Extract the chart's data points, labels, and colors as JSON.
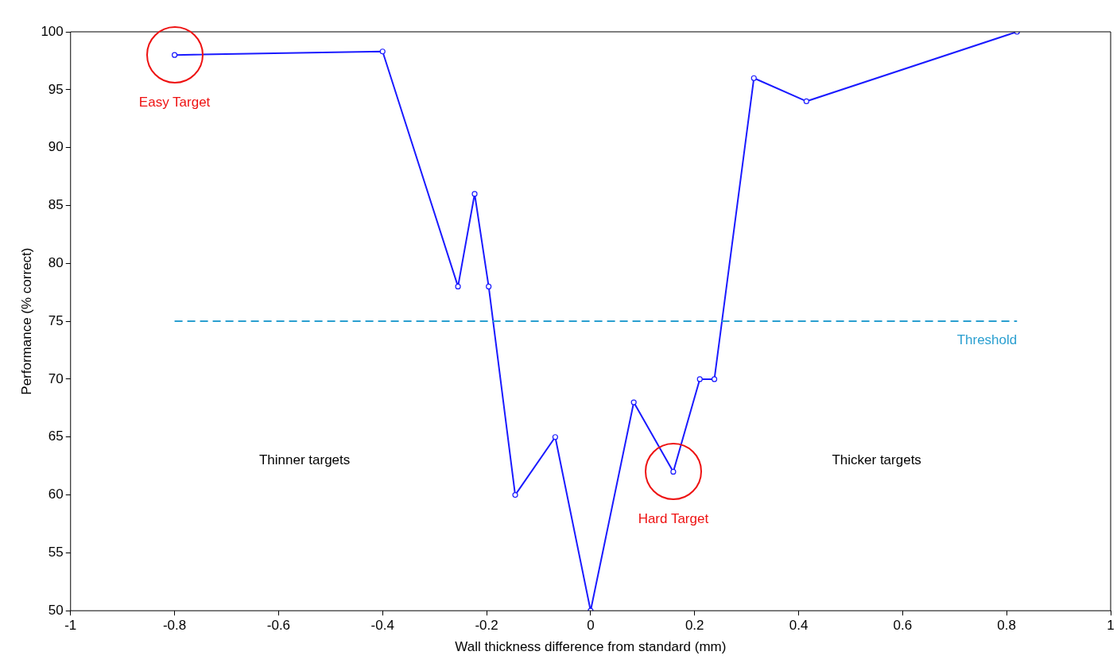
{
  "chart_data": {
    "type": "line",
    "xlabel": "Wall thickness difference from standard (mm)",
    "ylabel": "Performance (% correct)",
    "x": [
      -0.8,
      -0.4,
      -0.255,
      -0.223,
      -0.196,
      -0.145,
      -0.068,
      0,
      0.083,
      0.159,
      0.21,
      0.238,
      0.314,
      0.415,
      0.82
    ],
    "series": [
      {
        "color": "#1a1aff",
        "values": [
          98,
          98.3,
          78,
          86,
          78,
          60,
          65,
          50,
          68,
          62,
          70,
          70,
          96,
          94,
          100
        ]
      }
    ],
    "xlim": [
      -1,
      1
    ],
    "xticks": [
      -1,
      -0.8,
      -0.6,
      -0.4,
      -0.2,
      0,
      0.2,
      0.4,
      0.6,
      0.8,
      1
    ],
    "ylim": [
      50,
      100
    ],
    "yticks": [
      50,
      55,
      60,
      65,
      70,
      75,
      80,
      85,
      90,
      95,
      100
    ],
    "ref_lines": [
      {
        "axis": "y",
        "value": 75,
        "label": "Threshold",
        "color": "#2a9fd0",
        "line_style": "dashed"
      }
    ],
    "annotations": [
      {
        "text": "Easy Target",
        "x": -0.8,
        "y": 98
      },
      {
        "text": "Hard Target",
        "x": 0.159,
        "y": 62
      },
      "Thinner targets",
      "Thicker targets"
    ],
    "grid": false,
    "legend": false,
    "marker": "circle",
    "line_style": "solid"
  }
}
